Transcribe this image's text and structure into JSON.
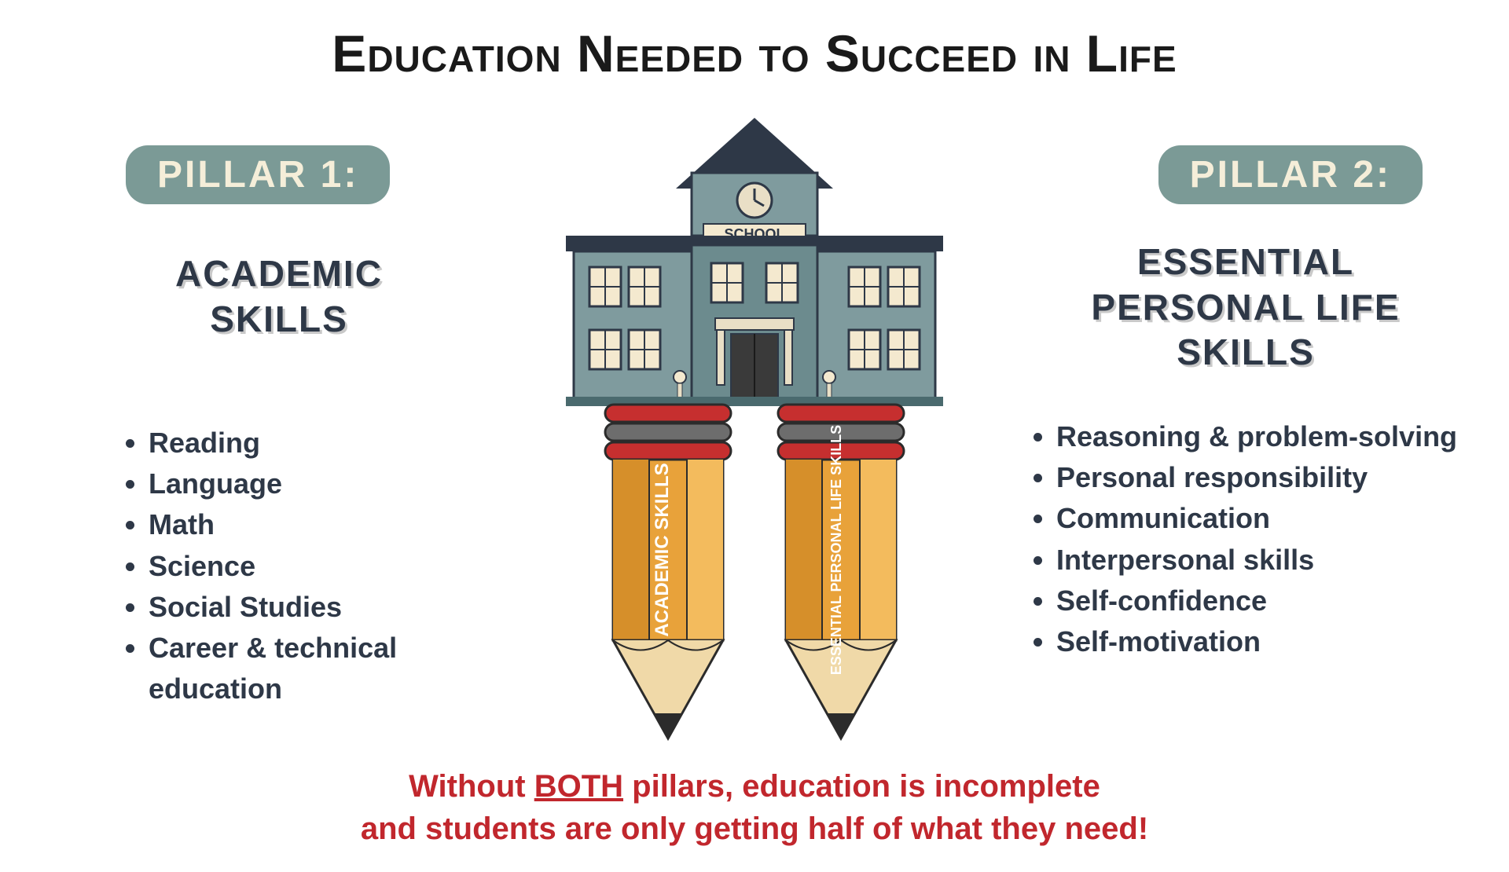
{
  "title": "Education Needed to Succeed in Life",
  "pillar1": {
    "badge": "PILLAR 1:",
    "heading": "ACADEMIC SKILLS",
    "items": [
      "Reading",
      "Language",
      "Math",
      "Science",
      "Social Studies",
      "Career & technical education"
    ]
  },
  "pillar2": {
    "badge": "PILLAR 2:",
    "heading": "ESSENTIAL PERSONAL LIFE SKILLS",
    "items": [
      "Reasoning & problem-solving",
      "Personal responsibility",
      "Communication",
      "Interpersonal skills",
      "Self-confidence",
      "Self-motivation"
    ]
  },
  "footer": {
    "line1_pre": "Without ",
    "line1_emph": "BOTH",
    "line1_post": " pillars, education is incomplete",
    "line2": "and students are only getting half of what they need!"
  },
  "graphic": {
    "school_label": "SCHOOL",
    "pencil1_text": "ACADEMIC SKILLS",
    "pencil2_text": "ESSENTIAL PERSONAL LIFE SKILLS",
    "colors": {
      "badge_bg": "#7b9a96",
      "badge_text": "#f5eed9",
      "body_text": "#2e3847",
      "footer_text": "#c1272d",
      "building_wall": "#7f9b9e",
      "building_wall_dark": "#4a6a6e",
      "roof": "#2e3847",
      "window_frame": "#2e3847",
      "window_fill": "#f4e9cf",
      "pencil_body": "#e8a23a",
      "pencil_body_light": "#f3bb5d",
      "pencil_wood": "#f0d9a8",
      "pencil_lead": "#2b2b2b",
      "ferrule_red": "#c62f2f",
      "ferrule_grey": "#6d6d6d",
      "door": "#3a3a3a"
    }
  }
}
